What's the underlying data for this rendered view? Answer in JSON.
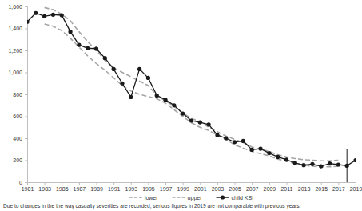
{
  "chart_data": {
    "type": "line",
    "x": [
      1981,
      1982,
      1983,
      1984,
      1985,
      1986,
      1987,
      1988,
      1989,
      1990,
      1991,
      1992,
      1993,
      1994,
      1995,
      1996,
      1997,
      1998,
      1999,
      2000,
      2001,
      2002,
      2003,
      2004,
      2005,
      2006,
      2007,
      2008,
      2009,
      2010,
      2011,
      2012,
      2013,
      2014,
      2015,
      2016,
      2017,
      2018,
      2019
    ],
    "xlim": [
      1981,
      2019
    ],
    "xticks": [
      1981,
      1983,
      1985,
      1987,
      1989,
      1991,
      1993,
      1995,
      1997,
      1999,
      2001,
      2003,
      2005,
      2007,
      2009,
      2011,
      2013,
      2015,
      2017,
      2019
    ],
    "ylim": [
      0,
      1600
    ],
    "yticks": [
      0,
      200,
      400,
      600,
      800,
      {
        "value": 1000,
        "label": "1,000"
      },
      {
        "value": 1200,
        "label": "1,200"
      },
      {
        "value": 1400,
        "label": "1,400"
      },
      {
        "value": 1600,
        "label": "1,600"
      }
    ],
    "grid": false,
    "legend": "bottom",
    "annotations": [
      "Due to changes in the the way casualty severities are recorded, serious figures in 2019 are not comparable with previous years."
    ],
    "series": [
      {
        "name": "lower",
        "color": "#a6a6a6",
        "line_style": "dashed",
        "marker": "none",
        "values": [
          null,
          null,
          1440,
          1420,
          1380,
          1310,
          1230,
          1150,
          1080,
          1020,
          950,
          880,
          830,
          800,
          780,
          760,
          720,
          660,
          600,
          540,
          500,
          470,
          430,
          390,
          340,
          310,
          280,
          260,
          240,
          210,
          190,
          170,
          155,
          145,
          140,
          140,
          145,
          null,
          null
        ]
      },
      {
        "name": "upper",
        "color": "#a6a6a6",
        "line_style": "dashed",
        "marker": "none",
        "values": [
          null,
          null,
          1590,
          1570,
          1530,
          1470,
          1370,
          1280,
          1200,
          1110,
          1040,
          1000,
          960,
          920,
          880,
          790,
          740,
          690,
          630,
          580,
          550,
          500,
          460,
          420,
          390,
          360,
          320,
          300,
          280,
          250,
          230,
          215,
          205,
          200,
          195,
          195,
          200,
          null,
          null
        ]
      },
      {
        "name": "child KSI",
        "color": "#1a1a1a",
        "line_style": "solid",
        "marker": "circle",
        "values": [
          1460,
          1540,
          1510,
          1525,
          1520,
          1370,
          1250,
          1220,
          1215,
          1130,
          1030,
          900,
          775,
          1030,
          950,
          790,
          750,
          700,
          625,
          560,
          545,
          525,
          430,
          400,
          365,
          375,
          295,
          305,
          265,
          230,
          205,
          175,
          155,
          165,
          145,
          170,
          160,
          150,
          200
        ],
        "errors": [
          null,
          null,
          null,
          null,
          null,
          null,
          null,
          null,
          null,
          null,
          null,
          null,
          null,
          null,
          null,
          null,
          null,
          null,
          null,
          null,
          null,
          null,
          null,
          null,
          null,
          null,
          null,
          null,
          null,
          null,
          null,
          null,
          null,
          null,
          null,
          null,
          null,
          155,
          null
        ]
      }
    ]
  }
}
